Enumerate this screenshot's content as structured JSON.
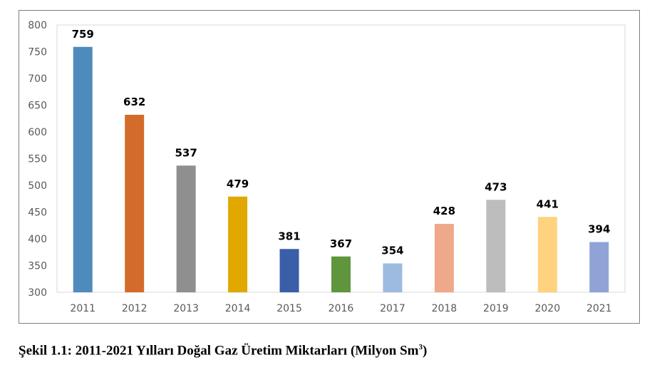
{
  "chart_data": {
    "type": "bar",
    "title": "",
    "xlabel": "",
    "ylabel": "",
    "categories": [
      "2011",
      "2012",
      "2013",
      "2014",
      "2015",
      "2016",
      "2017",
      "2018",
      "2019",
      "2020",
      "2021"
    ],
    "values": [
      759,
      632,
      537,
      479,
      381,
      367,
      354,
      428,
      473,
      441,
      394
    ],
    "colors": [
      "#4f8abd",
      "#d46b2b",
      "#8f8f8f",
      "#e0a800",
      "#3a5fa8",
      "#5f963d",
      "#9dbbe0",
      "#f0a88a",
      "#bdbdbd",
      "#ffd280",
      "#8fa3d6"
    ],
    "ylim": [
      300,
      800
    ],
    "yticks": [
      300,
      350,
      400,
      450,
      500,
      550,
      600,
      650,
      700,
      750,
      800
    ],
    "grid": false,
    "legend": "none"
  },
  "caption": {
    "text": "Şekil 1.1: 2011-2021 Yılları Doğal Gaz Üretim Miktarları (Milyon Sm",
    "sup": "3",
    "close": ")"
  }
}
